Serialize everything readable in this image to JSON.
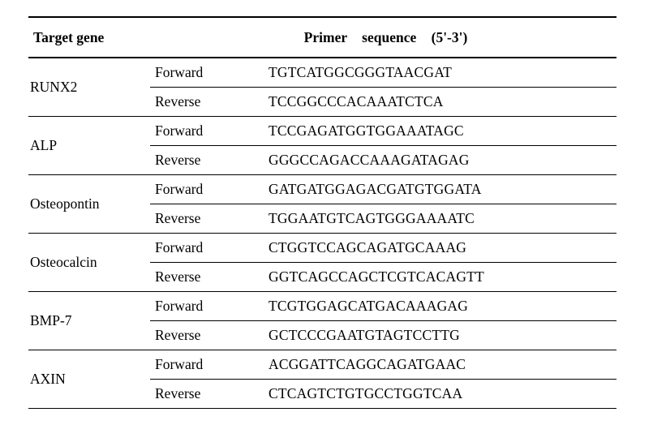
{
  "header": {
    "target_gene": "Target gene",
    "primer_sequence": "Primer    sequence (5'-3')"
  },
  "genes": [
    {
      "name": "RUNX2",
      "forward_label": "Forward",
      "reverse_label": "Reverse",
      "forward_seq": "TGTCATGGCGGGTAACGAT",
      "reverse_seq": "TCCGGCCCACAAATCTCA"
    },
    {
      "name": "ALP",
      "forward_label": "Forward",
      "reverse_label": "Reverse",
      "forward_seq": "TCCGAGATGGTGGAAATAGC",
      "reverse_seq": "GGGCCAGACCAAAGATAGAG"
    },
    {
      "name": "Osteopontin",
      "forward_label": "Forward",
      "reverse_label": "Reverse",
      "forward_seq": "GATGATGGAGACGATGTGGATA",
      "reverse_seq": "TGGAATGTCAGTGGGAAAATC"
    },
    {
      "name": "Osteocalcin",
      "forward_label": "Forward",
      "reverse_label": "Reverse",
      "forward_seq": "CTGGTCCAGCAGATGCAAAG",
      "reverse_seq": "GGTCAGCCAGCTCGTCACAGTT"
    },
    {
      "name": "BMP-7",
      "forward_label": "Forward",
      "reverse_label": "Reverse",
      "forward_seq": "TCGTGGAGCATGACAAAGAG",
      "reverse_seq": "GCTCCCGAATGTAGTCCTTG"
    },
    {
      "name": "AXIN",
      "forward_label": "Forward",
      "reverse_label": "Reverse",
      "forward_seq": "ACGGATTCAGGCAGATGAAC",
      "reverse_seq": "CTCAGTCTGTGCCTGGTCAA"
    }
  ]
}
